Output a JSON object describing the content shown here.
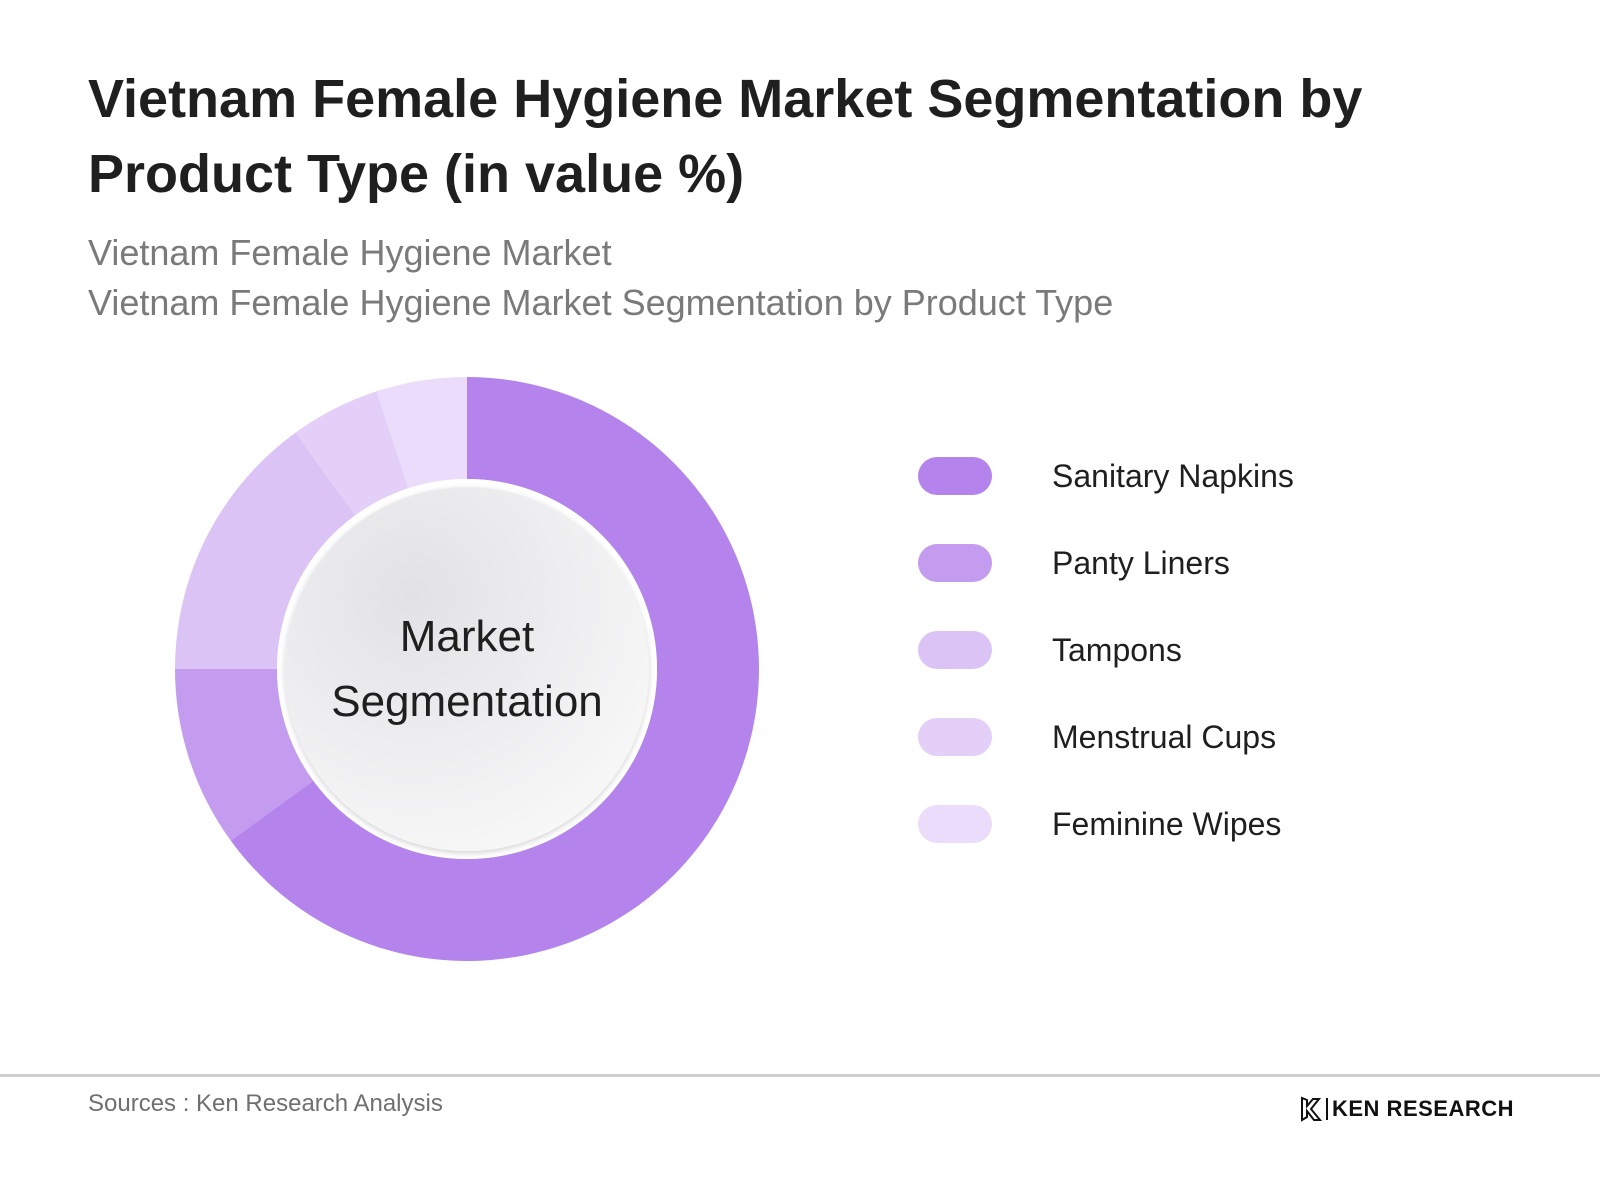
{
  "header": {
    "title": "Vietnam Female Hygiene Market Segmentation by Product Type (in value %)",
    "subtitle_line1": "Vietnam Female Hygiene Market",
    "subtitle_line2": "Vietnam Female Hygiene Market Segmentation by Product Type"
  },
  "center_label": {
    "line1": "Market",
    "line2": "Segmentation"
  },
  "chart_data": {
    "type": "pie",
    "variant": "donut",
    "title": "Vietnam Female Hygiene Market Segmentation by Product Type (in value %)",
    "categories": [
      "Sanitary Napkins",
      "Panty Liners",
      "Tampons",
      "Menstrual Cups",
      "Feminine Wipes"
    ],
    "values": [
      65,
      10,
      15,
      5,
      5
    ],
    "colors": [
      "#b484ec",
      "#c39cf0",
      "#dcc3f6",
      "#e3cff7",
      "#eadcfa"
    ],
    "legend_position": "right"
  },
  "footer": {
    "source": "Sources : Ken Research Analysis",
    "logo_text": "KEN RESEARCH"
  }
}
